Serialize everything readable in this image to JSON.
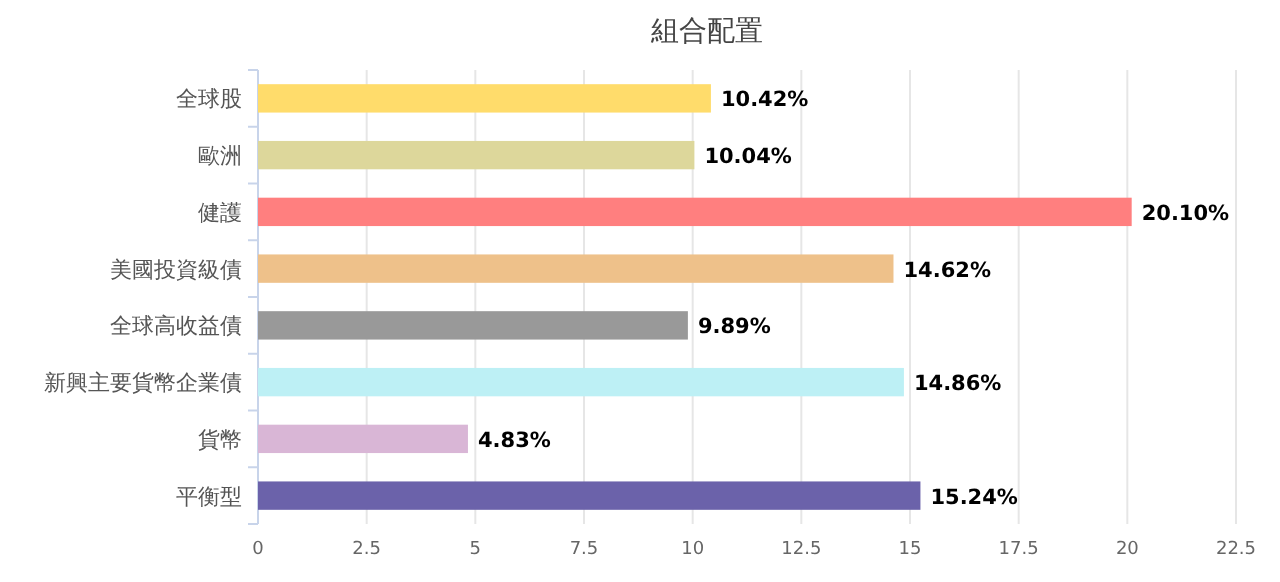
{
  "chart_data": {
    "type": "bar",
    "orientation": "horizontal",
    "title": "組合配置",
    "categories": [
      "全球股",
      "歐洲",
      "健護",
      "美國投資級債",
      "全球高收益債",
      "新興主要貨幣企業債",
      "貨幣",
      "平衡型"
    ],
    "values": [
      10.42,
      10.04,
      20.1,
      14.62,
      9.89,
      14.86,
      4.83,
      15.24
    ],
    "value_labels": [
      "10.42%",
      "10.04%",
      "20.10%",
      "14.62%",
      "9.89%",
      "14.86%",
      "4.83%",
      "15.24%"
    ],
    "colors": [
      "#ffdc6b",
      "#ddd79b",
      "#ff7f7f",
      "#eec18a",
      "#999999",
      "#bdf0f5",
      "#d9b6d6",
      "#6b62aa"
    ],
    "xlim": [
      0,
      22.5
    ],
    "xticks": [
      0,
      2.5,
      5,
      7.5,
      10,
      12.5,
      15,
      17.5,
      20,
      22.5
    ],
    "grid": "x"
  }
}
